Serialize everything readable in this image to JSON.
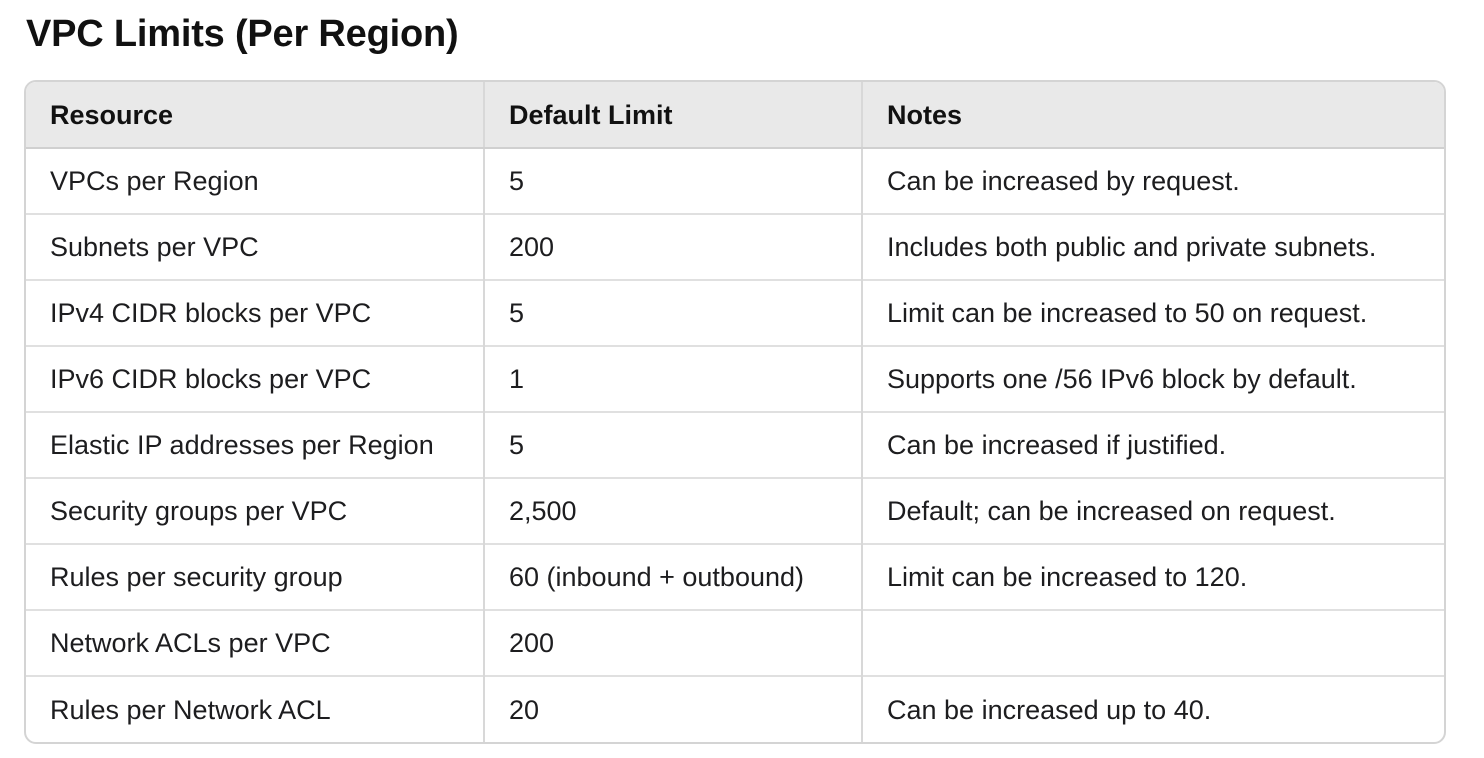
{
  "page": {
    "title": "VPC Limits (Per Region)"
  },
  "table": {
    "headers": [
      "Resource",
      "Default Limit",
      "Notes"
    ],
    "rows": [
      [
        "VPCs per Region",
        "5",
        "Can be increased by request."
      ],
      [
        "Subnets per VPC",
        "200",
        "Includes both public and private subnets."
      ],
      [
        "IPv4 CIDR blocks per VPC",
        "5",
        "Limit can be increased to 50 on request."
      ],
      [
        "IPv6 CIDR blocks per VPC",
        "1",
        "Supports one /56 IPv6 block by default."
      ],
      [
        "Elastic IP addresses per Region",
        "5",
        "Can be increased if justified."
      ],
      [
        "Security groups per VPC",
        "2,500",
        "Default; can be increased on request."
      ],
      [
        "Rules per security group",
        "60 (inbound + outbound)",
        "Limit can be increased to 120."
      ],
      [
        "Network ACLs per VPC",
        "200",
        ""
      ],
      [
        "Rules per Network ACL",
        "20",
        "Can be increased up to 40."
      ]
    ]
  }
}
